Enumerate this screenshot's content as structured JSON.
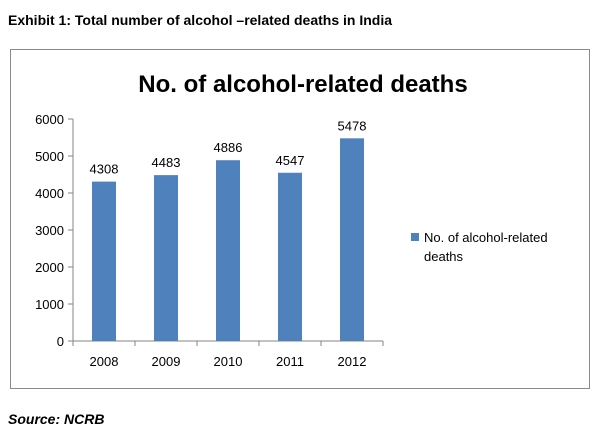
{
  "exhibit_title": "Exhibit 1: Total number of alcohol –related deaths in India",
  "source": "Source: NCRB",
  "chart_data": {
    "type": "bar",
    "title": "No. of alcohol-related deaths",
    "categories": [
      "2008",
      "2009",
      "2010",
      "2011",
      "2012"
    ],
    "series": [
      {
        "name": "No. of alcohol-related deaths",
        "values": [
          4308,
          4483,
          4886,
          4547,
          5478
        ],
        "color": "#4f81bd"
      }
    ],
    "data_labels": [
      "4308",
      "4483",
      "4886",
      "4547",
      "5478"
    ],
    "ylim": [
      0,
      6000
    ],
    "yticks": [
      0,
      1000,
      2000,
      3000,
      4000,
      5000,
      6000
    ],
    "xlabel": "",
    "ylabel": "",
    "grid": false,
    "legend": "right",
    "legend_lines": [
      "No. of alcohol-related",
      "deaths"
    ]
  }
}
